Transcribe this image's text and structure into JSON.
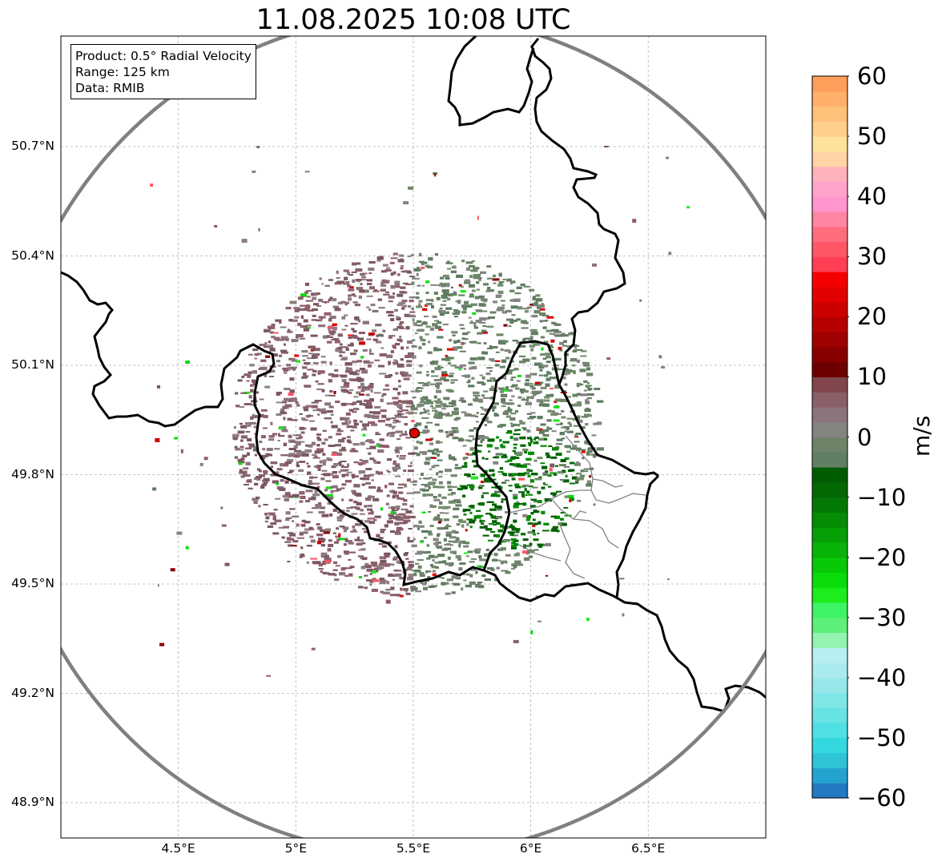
{
  "title": "11.08.2025 10:08 UTC",
  "info": {
    "product": "Product: 0.5° Radial Velocity",
    "range": "Range: 125 km",
    "data": "Data: RMIB"
  },
  "axes": {
    "lat_ticks": [
      "50.7°N",
      "50.4°N",
      "50.1°N",
      "49.8°N",
      "49.5°N",
      "49.2°N",
      "48.9°N"
    ],
    "lon_ticks": [
      "4.5°E",
      "5°E",
      "5.5°E",
      "6°E",
      "6.5°E"
    ],
    "extent": {
      "lon_min": 4.0,
      "lon_max": 7.0,
      "lat_min": 48.8,
      "lat_max": 51.0
    }
  },
  "radar": {
    "site": {
      "lon": 5.505,
      "lat": 49.914
    },
    "range_km": 125
  },
  "colorbar": {
    "label": "m/s",
    "min": -60,
    "max": 60,
    "ticks": [
      "60",
      "50",
      "40",
      "30",
      "20",
      "10",
      "0",
      "−10",
      "−20",
      "−30",
      "−40",
      "−50",
      "−60"
    ],
    "tick_values": [
      60,
      50,
      40,
      30,
      20,
      10,
      0,
      -10,
      -20,
      -30,
      -40,
      -50,
      -60
    ],
    "colors": [
      "#2279c4",
      "#24a3cf",
      "#2ec3d7",
      "#33d8df",
      "#4ee0e3",
      "#67e3e6",
      "#7fe6e8",
      "#96e8ea",
      "#a9ebed",
      "#b9eef0",
      "#93f4b0",
      "#5ef07a",
      "#3ff464",
      "#1ded1d",
      "#0adc0a",
      "#08c808",
      "#07b407",
      "#06a006",
      "#058c05",
      "#047804",
      "#036803",
      "#005c00",
      "#627e63",
      "#6e8468",
      "#848480",
      "#8b747d",
      "#8b5f68",
      "#81464c",
      "#6e0000",
      "#870000",
      "#9f0000",
      "#b70000",
      "#cd0000",
      "#e20000",
      "#f50000",
      "#ff3f53",
      "#ff5665",
      "#ff6d7d",
      "#ff85a0",
      "#ff96cd",
      "#ffa3cd",
      "#ffb2bb",
      "#ffd4a6",
      "#ffe39b",
      "#ffcf8a",
      "#ffc07a",
      "#ffaf6a",
      "#ff9e5a"
    ]
  },
  "colors": {
    "border": "#000000",
    "range_ring": "#808080",
    "subdivisions": "#808080",
    "grid": "#b0b0b0",
    "site_marker": "#e00000",
    "approaching_core": "#006400",
    "receding_core": "#8b5f68"
  }
}
